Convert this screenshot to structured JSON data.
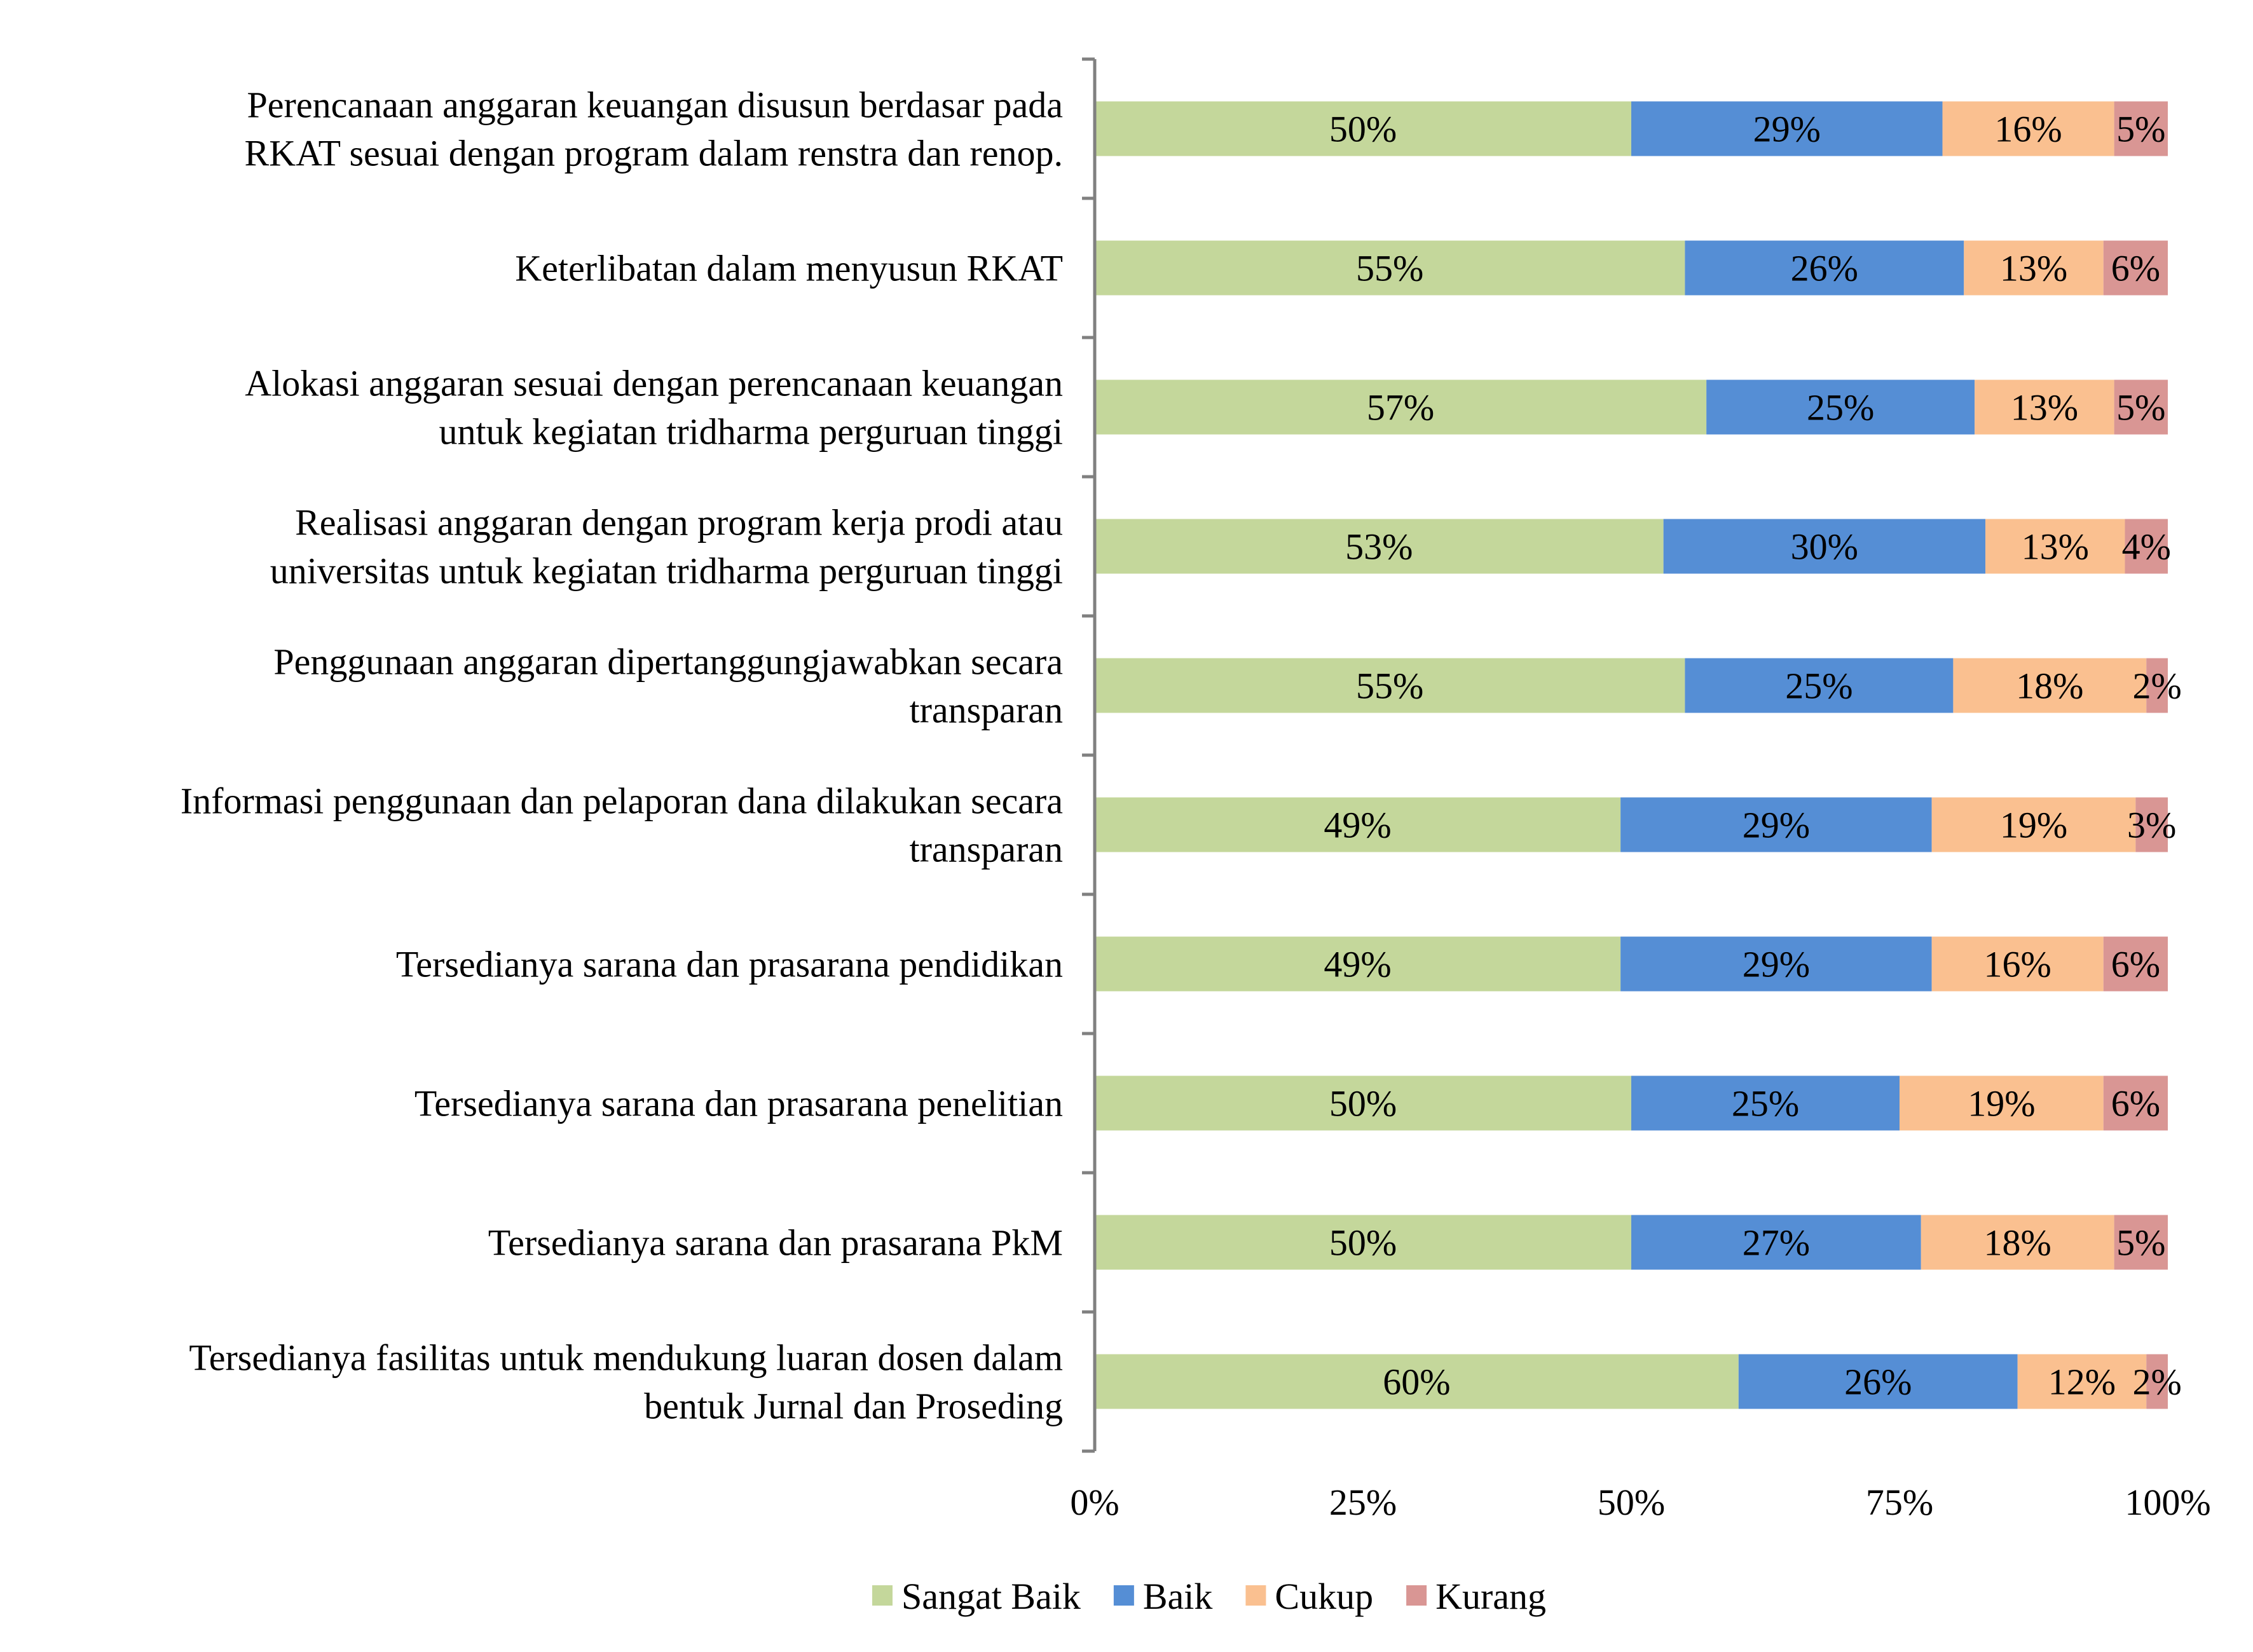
{
  "chart_data": {
    "type": "bar",
    "orientation": "horizontal",
    "stacked": "percent",
    "categories": [
      [
        "Perencanaan anggaran keuangan disusun berdasar pada",
        "RKAT sesuai dengan program dalam renstra dan renop."
      ],
      [
        "Keterlibatan dalam menyusun RKAT"
      ],
      [
        "Alokasi anggaran sesuai dengan perencanaan keuangan",
        "untuk kegiatan tridharma perguruan tinggi"
      ],
      [
        "Realisasi anggaran dengan program kerja prodi atau",
        "universitas untuk kegiatan tridharma perguruan tinggi"
      ],
      [
        "Penggunaan anggaran dipertanggungjawabkan secara",
        "transparan"
      ],
      [
        "Informasi penggunaan dan pelaporan dana dilakukan secara",
        "transparan"
      ],
      [
        "Tersedianya sarana dan prasarana pendidikan"
      ],
      [
        "Tersedianya sarana dan prasarana penelitian"
      ],
      [
        "Tersedianya sarana dan prasarana PkM"
      ],
      [
        "Tersedianya fasilitas untuk mendukung luaran dosen dalam",
        "bentuk Jurnal dan Proseding"
      ]
    ],
    "series": [
      {
        "name": "Sangat Baik",
        "color": "#c4d79b",
        "values": [
          50,
          55,
          57,
          53,
          55,
          49,
          49,
          50,
          50,
          60
        ]
      },
      {
        "name": "Baik",
        "color": "#558ed5",
        "values": [
          29,
          26,
          25,
          30,
          25,
          29,
          29,
          25,
          27,
          26
        ]
      },
      {
        "name": "Cukup",
        "color": "#fac090",
        "values": [
          16,
          13,
          13,
          13,
          18,
          19,
          16,
          19,
          18,
          12
        ]
      },
      {
        "name": "Kurang",
        "color": "#d99694",
        "values": [
          5,
          6,
          5,
          4,
          2,
          3,
          6,
          6,
          5,
          2
        ]
      }
    ],
    "value_suffix": "%",
    "xlim": [
      0,
      100
    ],
    "x_ticks": [
      0,
      25,
      50,
      75,
      100
    ],
    "x_tick_labels": [
      "0%",
      "25%",
      "50%",
      "75%",
      "100%"
    ],
    "grid": false,
    "legend_position": "bottom"
  }
}
